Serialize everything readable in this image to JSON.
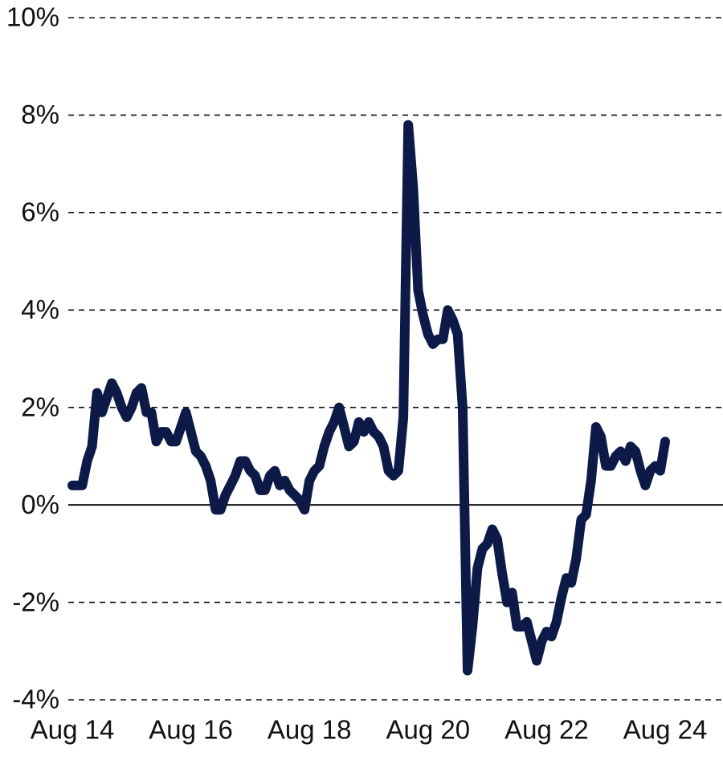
{
  "chart_data": {
    "type": "line",
    "categories": [
      "Aug 14",
      null,
      null,
      null,
      null,
      null,
      null,
      null,
      null,
      null,
      null,
      null,
      null,
      null,
      null,
      null,
      null,
      null,
      null,
      null,
      null,
      null,
      null,
      null,
      "Aug 16",
      null,
      null,
      null,
      null,
      null,
      null,
      null,
      null,
      null,
      null,
      null,
      null,
      null,
      null,
      null,
      null,
      null,
      null,
      null,
      null,
      null,
      null,
      null,
      "Aug 18",
      null,
      null,
      null,
      null,
      null,
      null,
      null,
      null,
      null,
      null,
      null,
      null,
      null,
      null,
      null,
      null,
      null,
      null,
      null,
      null,
      null,
      null,
      null,
      "Aug 20",
      null,
      null,
      null,
      null,
      null,
      null,
      null,
      null,
      null,
      null,
      null,
      null,
      null,
      null,
      null,
      null,
      null,
      null,
      null,
      null,
      null,
      null,
      null,
      "Aug 22",
      null,
      null,
      null,
      null,
      null,
      null,
      null,
      null,
      null,
      null,
      null,
      null,
      null,
      null,
      null,
      null,
      null,
      null,
      null,
      null,
      null,
      null,
      null,
      "Aug 24"
    ],
    "series": [
      {
        "color": "#0d1a48",
        "values": [
          0.4,
          0.4,
          0.4,
          0.9,
          1.2,
          2.3,
          1.9,
          2.2,
          2.5,
          2.3,
          2.0,
          1.8,
          2.0,
          2.3,
          2.4,
          1.9,
          1.9,
          1.3,
          1.5,
          1.5,
          1.3,
          1.3,
          1.6,
          1.9,
          1.5,
          1.1,
          1.0,
          0.8,
          0.5,
          -0.1,
          -0.1,
          0.2,
          0.4,
          0.6,
          0.9,
          0.9,
          0.7,
          0.6,
          0.3,
          0.3,
          0.6,
          0.7,
          0.4,
          0.5,
          0.3,
          0.2,
          0.1,
          -0.1,
          0.5,
          0.7,
          0.8,
          1.2,
          1.5,
          1.7,
          2.0,
          1.6,
          1.2,
          1.3,
          1.7,
          1.5,
          1.7,
          1.5,
          1.4,
          1.2,
          0.7,
          0.6,
          0.7,
          1.8,
          7.8,
          6.5,
          4.4,
          3.9,
          3.5,
          3.3,
          3.4,
          3.4,
          4.0,
          3.8,
          3.5,
          2.0,
          -3.4,
          -2.5,
          -1.3,
          -0.9,
          -0.8,
          -0.5,
          -0.7,
          -1.4,
          -2.0,
          -1.8,
          -2.5,
          -2.5,
          -2.4,
          -2.8,
          -3.2,
          -2.8,
          -2.6,
          -2.7,
          -2.4,
          -1.9,
          -1.5,
          -1.6,
          -1.1,
          -0.3,
          -0.2,
          0.5,
          1.6,
          1.4,
          0.8,
          0.8,
          1.0,
          1.1,
          0.9,
          1.2,
          1.1,
          0.7,
          0.4,
          0.7,
          0.8,
          0.7,
          1.3
        ]
      }
    ],
    "ylim": [
      -4,
      10
    ],
    "yticks": [
      {
        "value": -4,
        "label": "-4%"
      },
      {
        "value": -2,
        "label": "-2%"
      },
      {
        "value": 0,
        "label": "0%"
      },
      {
        "value": 2,
        "label": "2%"
      },
      {
        "value": 4,
        "label": "4%"
      },
      {
        "value": 6,
        "label": "6%"
      },
      {
        "value": 8,
        "label": "8%"
      },
      {
        "value": 10,
        "label": "10%"
      }
    ],
    "grid": true
  }
}
